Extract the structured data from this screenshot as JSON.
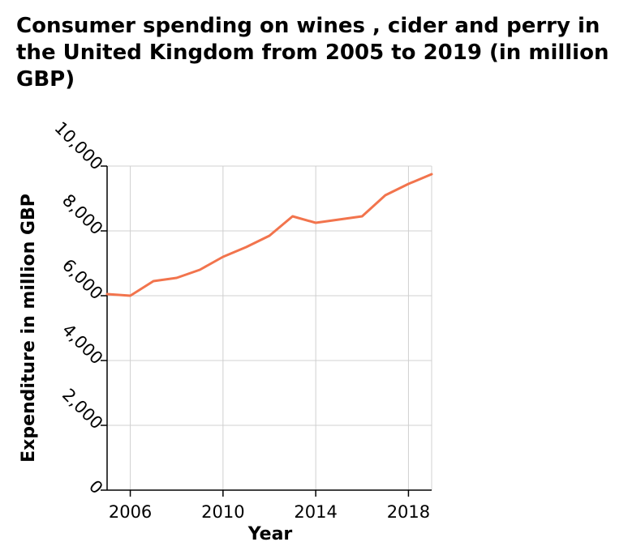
{
  "chart_data": {
    "type": "line",
    "title": "Consumer spending on wines , cider and perry in the United Kingdom from 2005 to 2019 (in million GBP)",
    "xlabel": "Year",
    "ylabel": "Expenditure in million GBP",
    "xlim": [
      2005,
      2019
    ],
    "ylim": [
      0,
      10000
    ],
    "x_ticks": [
      2006,
      2010,
      2014,
      2018
    ],
    "x_tick_labels": [
      "2006",
      "2010",
      "2014",
      "2018"
    ],
    "y_ticks": [
      0,
      2000,
      4000,
      6000,
      8000,
      10000
    ],
    "y_tick_labels": [
      "0",
      "2,000",
      "4,000",
      "6,000",
      "8,000",
      "10,000"
    ],
    "grid": true,
    "series": [
      {
        "color": "#f2744d",
        "x": [
          2005,
          2006,
          2007,
          2008,
          2009,
          2010,
          2011,
          2012,
          2013,
          2014,
          2015,
          2016,
          2017,
          2018,
          2019
        ],
        "values": [
          6050,
          6000,
          6450,
          6550,
          6800,
          7200,
          7500,
          7850,
          8450,
          8250,
          8350,
          8450,
          9100,
          9450,
          9750
        ]
      }
    ]
  }
}
